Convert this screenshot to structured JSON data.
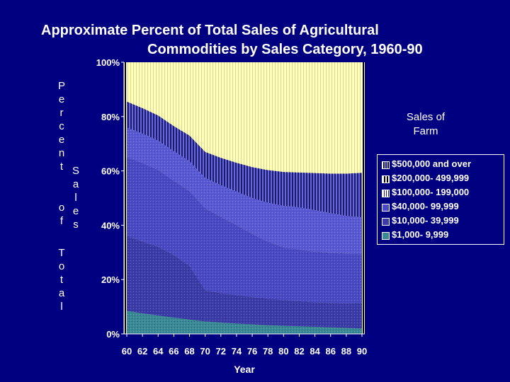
{
  "chart_data": {
    "type": "area",
    "stacked": true,
    "title_line1": "Approximate Percent of Total Sales of Agricultural",
    "title_line2": "Commodities by Sales Category, 1960-90",
    "xlabel": "Year",
    "ylabel_parts": [
      "Percent",
      "of",
      "Total",
      "Sales"
    ],
    "legend_title": "Sales of Farm",
    "x": [
      60,
      62,
      64,
      66,
      68,
      70,
      72,
      74,
      76,
      78,
      80,
      82,
      84,
      86,
      88,
      90
    ],
    "x_tick_labels": [
      "60",
      "62",
      "64",
      "66",
      "68",
      "70",
      "72",
      "74",
      "76",
      "78",
      "80",
      "82",
      "84",
      "86",
      "88",
      "90"
    ],
    "y_tick_labels": [
      "0%",
      "20%",
      "40%",
      "60%",
      "80%",
      "100%"
    ],
    "ylim": [
      0,
      100
    ],
    "series": [
      {
        "name": "$1,000- 9,999",
        "color": "#3a8a96",
        "values": [
          8.5,
          7.6,
          6.8,
          6.0,
          5.3,
          4.6,
          4.2,
          3.8,
          3.5,
          3.2,
          3.0,
          2.8,
          2.6,
          2.4,
          2.2,
          2.0
        ]
      },
      {
        "name": "$10,000- 39,999",
        "color": "#3c3ca8",
        "values": [
          27.5,
          26.4,
          25.2,
          23.0,
          19.7,
          11.4,
          10.8,
          10.4,
          10.0,
          9.8,
          9.4,
          9.2,
          9.0,
          9.0,
          9.0,
          9.4
        ]
      },
      {
        "name": "$40,000- 99,999",
        "color": "#4a4ac4",
        "values": [
          29.0,
          28.9,
          28.3,
          27.3,
          27.5,
          30.2,
          28.0,
          25.8,
          23.3,
          20.9,
          19.4,
          19.0,
          18.6,
          18.4,
          18.3,
          18.0
        ]
      },
      {
        "name": "$100,000- 199,000",
        "color": "#5a5ad4",
        "values": [
          11.0,
          10.9,
          10.9,
          11.0,
          11.1,
          11.3,
          11.8,
          12.4,
          13.3,
          14.4,
          15.4,
          15.6,
          15.4,
          14.7,
          14.0,
          13.6
        ]
      },
      {
        "name": "$200,000- 499,999",
        "color": "#6868d8",
        "values": [
          9.5,
          9.3,
          9.2,
          9.2,
          9.4,
          9.5,
          10.0,
          10.6,
          11.3,
          12.0,
          12.4,
          12.8,
          13.6,
          14.5,
          15.5,
          16.3
        ]
      },
      {
        "name": "$500,000 and over",
        "color": "#ffffbb",
        "values": [
          14.5,
          16.9,
          19.6,
          23.5,
          27.0,
          33.0,
          35.2,
          37.0,
          38.6,
          39.7,
          40.4,
          40.6,
          40.8,
          41.0,
          41.0,
          40.7
        ]
      }
    ]
  }
}
